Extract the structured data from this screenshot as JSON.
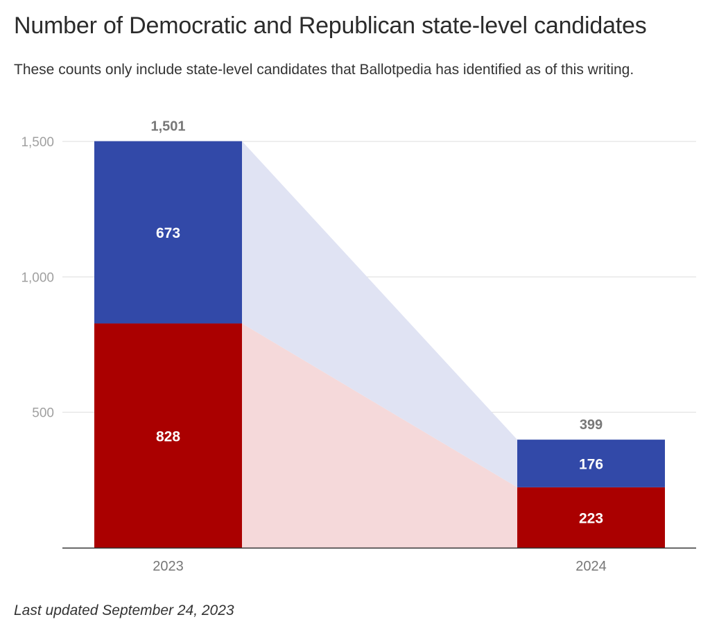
{
  "header": {
    "title": "Number of Democratic and Republican state-level candidates",
    "subtitle": "These counts only include state-level candidates that Ballotpedia has identified as of this writing."
  },
  "footer": {
    "note": "Last updated September 24, 2023"
  },
  "chart_data": {
    "type": "bar",
    "stacked": true,
    "categories": [
      "2023",
      "2024"
    ],
    "series": [
      {
        "values": [
          828,
          223
        ],
        "color": "#aa0000",
        "connector_color": "#f5d9da"
      },
      {
        "values": [
          673,
          176
        ],
        "color": "#3249a8",
        "connector_color": "#e0e3f3"
      }
    ],
    "totals": [
      1501,
      399
    ],
    "yticks": [
      500,
      1000,
      1500
    ],
    "ytick_labels": [
      "500",
      "1,000",
      "1,500"
    ],
    "ylim": [
      0,
      1500
    ],
    "grid": true,
    "legend": "none"
  }
}
